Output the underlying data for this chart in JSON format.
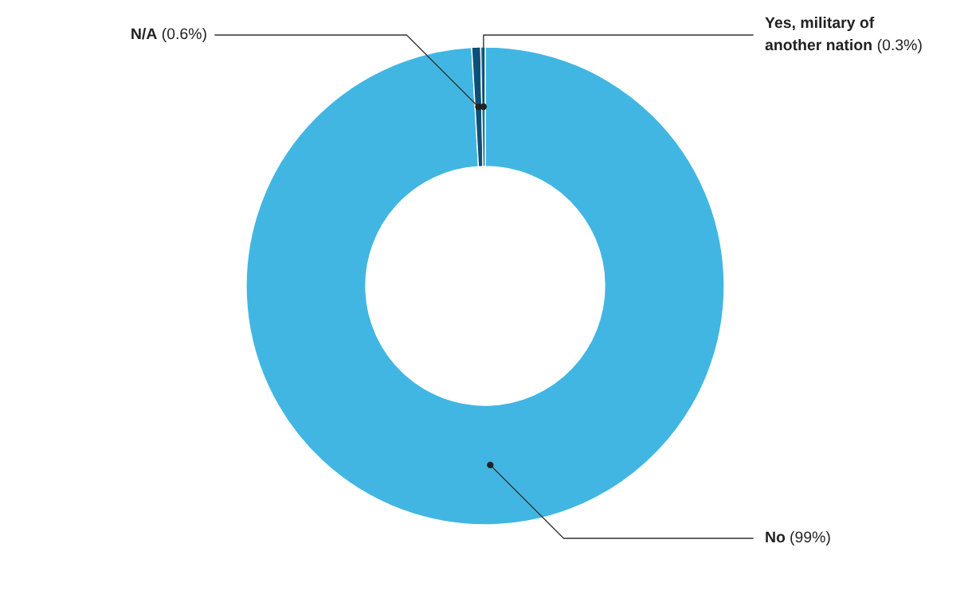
{
  "chart_data": {
    "type": "donut",
    "categories": [
      "No",
      "N/A",
      "Yes, military of another nation"
    ],
    "values": [
      99,
      0.6,
      0.3
    ],
    "colors": [
      "#41b6e2",
      "#0b5177",
      "#1d6f99"
    ],
    "value_labels": [
      "(99%)",
      "(0.6%)",
      "(0.3%)"
    ],
    "legend": false
  }
}
